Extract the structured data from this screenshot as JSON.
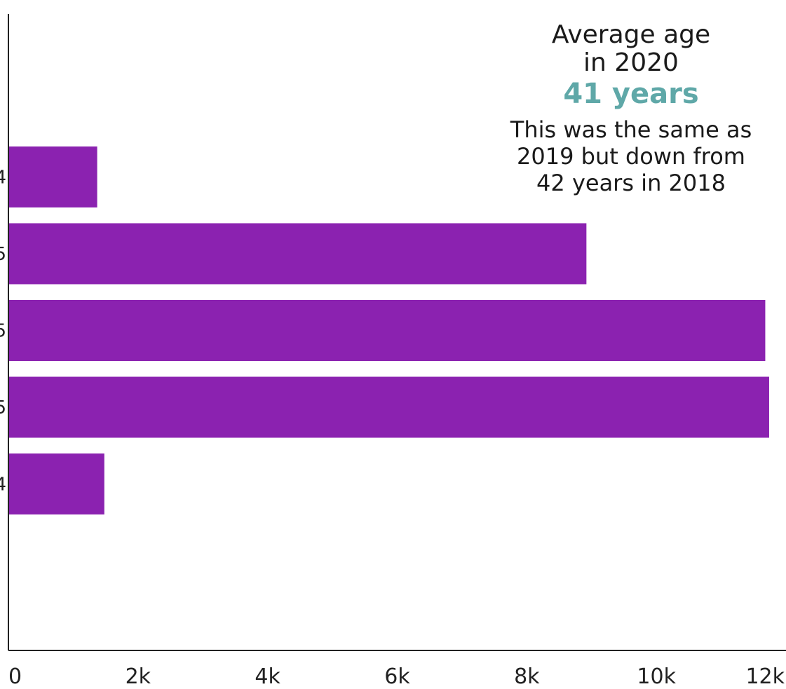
{
  "chart_data": {
    "type": "bar",
    "orientation": "horizontal",
    "categories": [
      "4",
      "5",
      "5",
      "5",
      "4"
    ],
    "values": [
      1370,
      8920,
      11680,
      11740,
      1480
    ],
    "xlim": [
      0,
      12000
    ],
    "xticks": [
      "0",
      "2k",
      "4k",
      "6k",
      "8k",
      "10k",
      "12k"
    ],
    "xtick_values": [
      0,
      2000,
      4000,
      6000,
      8000,
      10000,
      12000
    ],
    "bar_color": "#8b22b0",
    "grid": false
  },
  "annotation": {
    "line1": "Average age",
    "line2": "in 2020",
    "highlight": "41 years",
    "sub1": "This was the same as",
    "sub2": "2019 but down from",
    "sub3": "42 years in 2018",
    "highlight_color": "#5fa8a8"
  }
}
